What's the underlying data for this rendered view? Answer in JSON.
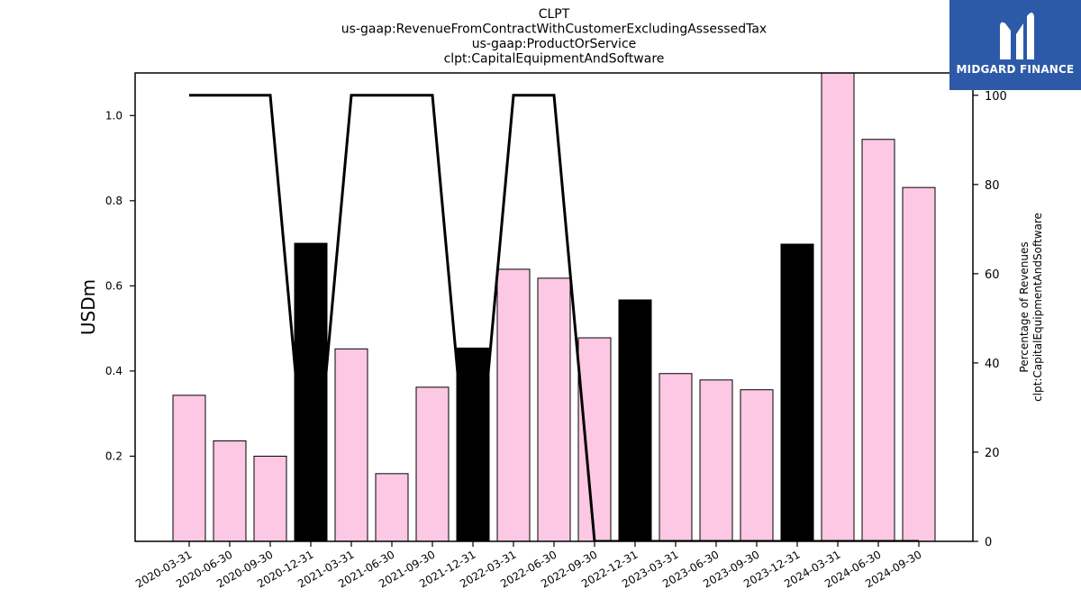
{
  "chart_data": {
    "type": "bar",
    "title_lines": [
      "CLPT",
      "us-gaap:RevenueFromContractWithCustomerExcludingAssessedTax",
      "us-gaap:ProductOrService",
      "clpt:CapitalEquipmentAndSoftware"
    ],
    "ylabel": "USDm",
    "y2label_lines": [
      "Percentage of Revenues",
      "clpt:CapitalEquipmentAndSoftware"
    ],
    "categories": [
      "2020-03-31",
      "2020-06-30",
      "2020-09-30",
      "2020-12-31",
      "2021-03-31",
      "2021-06-30",
      "2021-09-30",
      "2021-12-31",
      "2022-03-31",
      "2022-06-30",
      "2022-09-30",
      "2022-12-31",
      "2023-03-31",
      "2023-06-30",
      "2023-09-30",
      "2023-12-31",
      "2024-03-31",
      "2024-06-30",
      "2024-09-30"
    ],
    "values": [
      0.343,
      0.236,
      0.2,
      0.7,
      0.452,
      0.159,
      0.362,
      0.454,
      0.639,
      0.618,
      0.478,
      0.567,
      0.394,
      0.379,
      0.356,
      0.698,
      1.11,
      0.944,
      0.831
    ],
    "bar_colors": [
      "#fcc8e4",
      "#fcc8e4",
      "#fcc8e4",
      "#000000",
      "#fcc8e4",
      "#fcc8e4",
      "#fcc8e4",
      "#000000",
      "#fcc8e4",
      "#fcc8e4",
      "#fcc8e4",
      "#000000",
      "#fcc8e4",
      "#fcc8e4",
      "#fcc8e4",
      "#000000",
      "#fcc8e4",
      "#fcc8e4",
      "#fcc8e4"
    ],
    "percentage": [
      100,
      100,
      100,
      0,
      100,
      100,
      100,
      0,
      100,
      100,
      0,
      0,
      0,
      0,
      0,
      0,
      0,
      0,
      0
    ],
    "ylim": [
      0,
      1.1
    ],
    "y2lim": [
      0,
      105
    ],
    "yticks": [
      0.2,
      0.4,
      0.6,
      0.8,
      1.0
    ],
    "y2ticks": [
      0,
      20,
      40,
      60,
      80,
      100
    ],
    "grid": false
  },
  "logo": {
    "text": "MIDGARD FINANCE",
    "bg_color": "#2d5aa8"
  }
}
